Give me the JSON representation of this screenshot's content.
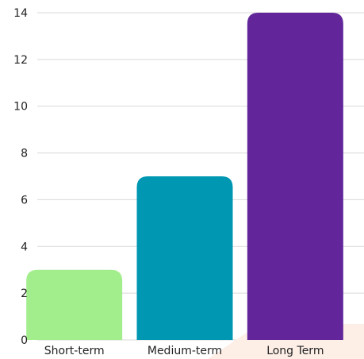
{
  "chart_data": {
    "type": "bar",
    "categories": [
      "Short-term",
      "Medium-term",
      "Long Term"
    ],
    "values": [
      3,
      7,
      14
    ],
    "colors": [
      "#a3ee8c",
      "#0097b3",
      "#62269a"
    ],
    "ylim": [
      0,
      14
    ],
    "yticks": [
      0,
      2,
      4,
      6,
      8,
      10,
      12,
      14
    ],
    "grid": true,
    "title": "",
    "xlabel": "",
    "ylabel": ""
  },
  "decoration": {
    "corner_accent_color": "#fdeee6"
  }
}
